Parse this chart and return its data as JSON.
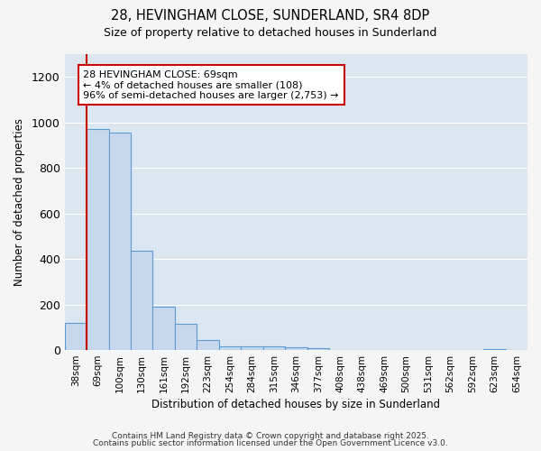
{
  "title1": "28, HEVINGHAM CLOSE, SUNDERLAND, SR4 8DP",
  "title2": "Size of property relative to detached houses in Sunderland",
  "xlabel": "Distribution of detached houses by size in Sunderland",
  "ylabel": "Number of detached properties",
  "categories": [
    "38sqm",
    "69sqm",
    "100sqm",
    "130sqm",
    "161sqm",
    "192sqm",
    "223sqm",
    "254sqm",
    "284sqm",
    "315sqm",
    "346sqm",
    "377sqm",
    "408sqm",
    "438sqm",
    "469sqm",
    "500sqm",
    "531sqm",
    "562sqm",
    "592sqm",
    "623sqm",
    "654sqm"
  ],
  "values": [
    120,
    970,
    955,
    435,
    190,
    115,
    45,
    18,
    15,
    15,
    12,
    10,
    0,
    0,
    0,
    0,
    0,
    0,
    0,
    5,
    0
  ],
  "bar_color": "#c8d8ec",
  "bar_edge_color": "#5b9bd5",
  "red_line_index": 1,
  "annotation_line1": "28 HEVINGHAM CLOSE: 69sqm",
  "annotation_line2": "← 4% of detached houses are smaller (108)",
  "annotation_line3": "96% of semi-detached houses are larger (2,753) →",
  "annotation_box_color": "#ffffff",
  "annotation_box_edge_color": "#cc0000",
  "red_line_color": "#cc0000",
  "ylim": [
    0,
    1300
  ],
  "yticks": [
    0,
    200,
    400,
    600,
    800,
    1000,
    1200
  ],
  "bg_color": "#dce6f0",
  "grid_color": "#ffffff",
  "fig_bg_color": "#f5f5f5",
  "footer1": "Contains HM Land Registry data © Crown copyright and database right 2025.",
  "footer2": "Contains public sector information licensed under the Open Government Licence v3.0."
}
